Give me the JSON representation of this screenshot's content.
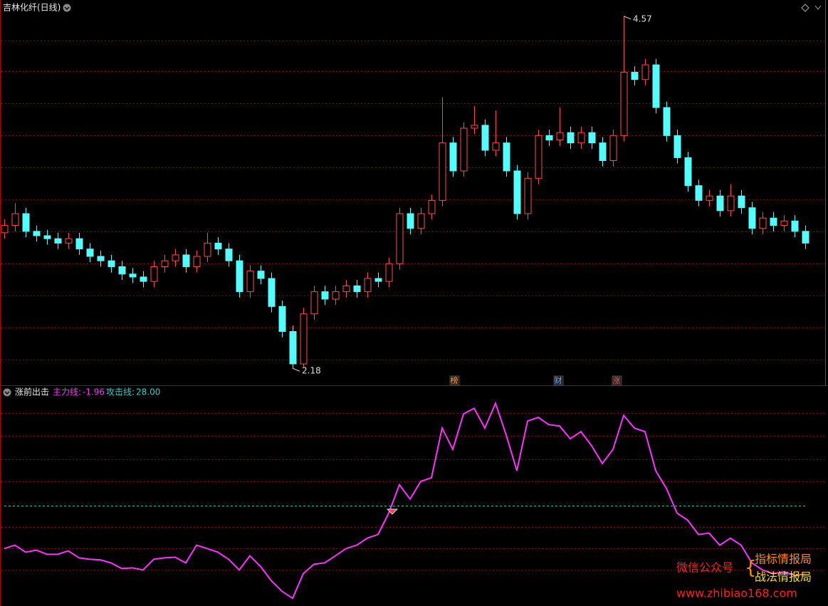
{
  "header": {
    "title": "吉林化纤(日线)"
  },
  "chart_data": [
    {
      "type": "candlestick",
      "open": [
        3.1,
        3.15,
        3.23,
        3.11,
        3.08,
        3.06,
        3.03,
        3.06,
        2.99,
        2.94,
        2.91,
        2.87,
        2.82,
        2.8,
        2.77,
        2.87,
        2.91,
        2.95,
        2.87,
        2.94,
        3.03,
        2.99,
        2.91,
        2.7,
        2.84,
        2.79,
        2.6,
        2.43,
        2.21,
        2.55,
        2.7,
        2.65,
        2.7,
        2.74,
        2.7,
        2.79,
        2.77,
        2.89,
        3.23,
        3.13,
        3.23,
        3.32,
        3.71,
        3.52,
        3.81,
        3.83,
        3.66,
        3.71,
        3.52,
        3.23,
        3.47,
        3.76,
        3.73,
        3.78,
        3.71,
        3.78,
        3.71,
        3.59,
        3.76,
        4.19,
        4.14,
        4.24,
        3.95,
        3.76,
        3.61,
        3.42,
        3.32,
        3.35,
        3.25,
        3.35,
        3.27,
        3.13,
        3.2,
        3.15,
        3.18,
        3.11
      ],
      "high": [
        3.19,
        3.3,
        3.27,
        3.15,
        3.12,
        3.1,
        3.1,
        3.1,
        3.03,
        2.98,
        2.95,
        2.91,
        2.86,
        2.84,
        2.91,
        2.95,
        2.99,
        2.99,
        2.98,
        3.1,
        3.07,
        3.03,
        2.95,
        2.88,
        2.88,
        2.83,
        2.64,
        2.47,
        2.59,
        2.74,
        2.74,
        2.74,
        2.78,
        2.78,
        2.83,
        2.83,
        2.93,
        3.27,
        3.27,
        3.27,
        3.36,
        4.02,
        3.75,
        3.85,
        3.96,
        3.87,
        3.93,
        3.75,
        3.56,
        3.51,
        3.8,
        3.8,
        3.95,
        3.82,
        3.82,
        3.82,
        3.75,
        3.8,
        4.57,
        4.23,
        4.28,
        4.28,
        3.99,
        3.8,
        3.65,
        3.46,
        3.39,
        3.39,
        3.43,
        3.39,
        3.31,
        3.24,
        3.24,
        3.22,
        3.22,
        3.15
      ],
      "low": [
        3.06,
        3.11,
        3.07,
        3.04,
        3.02,
        2.99,
        2.99,
        2.95,
        2.9,
        2.87,
        2.83,
        2.78,
        2.76,
        2.73,
        2.73,
        2.83,
        2.87,
        2.83,
        2.83,
        2.9,
        2.95,
        2.87,
        2.66,
        2.66,
        2.75,
        2.56,
        2.39,
        2.18,
        2.19,
        2.51,
        2.61,
        2.61,
        2.66,
        2.66,
        2.66,
        2.73,
        2.73,
        2.85,
        3.09,
        3.09,
        3.19,
        3.28,
        3.48,
        3.48,
        3.77,
        3.62,
        3.62,
        3.48,
        3.19,
        3.19,
        3.43,
        3.69,
        3.69,
        3.67,
        3.67,
        3.67,
        3.55,
        3.55,
        3.72,
        4.1,
        4.1,
        3.91,
        3.72,
        3.57,
        3.38,
        3.28,
        3.28,
        3.21,
        3.21,
        3.23,
        3.09,
        3.09,
        3.11,
        3.11,
        3.07,
        2.99
      ],
      "close": [
        3.15,
        3.23,
        3.11,
        3.08,
        3.06,
        3.03,
        3.06,
        2.99,
        2.94,
        2.91,
        2.87,
        2.82,
        2.8,
        2.77,
        2.87,
        2.91,
        2.95,
        2.87,
        2.94,
        3.03,
        2.99,
        2.91,
        2.7,
        2.84,
        2.79,
        2.6,
        2.43,
        2.21,
        2.55,
        2.7,
        2.65,
        2.7,
        2.74,
        2.7,
        2.79,
        2.77,
        2.89,
        3.23,
        3.13,
        3.23,
        3.32,
        3.71,
        3.52,
        3.81,
        3.83,
        3.66,
        3.71,
        3.52,
        3.23,
        3.47,
        3.76,
        3.73,
        3.78,
        3.71,
        3.78,
        3.71,
        3.59,
        3.76,
        4.19,
        4.14,
        4.24,
        3.95,
        3.76,
        3.61,
        3.42,
        3.32,
        3.35,
        3.25,
        3.35,
        3.27,
        3.13,
        3.2,
        3.15,
        3.18,
        3.11,
        3.03
      ],
      "up_color": "#ff4a4a",
      "down_color": "#54fcfc",
      "ylim": [
        2.07,
        4.68
      ],
      "high_annotation": 4.57,
      "low_annotation": 2.18,
      "event_markers": [
        "榜",
        "财",
        "涨"
      ]
    },
    {
      "type": "line",
      "title": "涨前出击",
      "series": [
        {
          "name": "主力线:",
          "color": "#ff33ff",
          "value_label": "-1.96",
          "values": [
            9.3,
            10.8,
            7.7,
            8.6,
            6.8,
            6.8,
            8.3,
            5.2,
            4.6,
            4.3,
            3.0,
            0.5,
            0.8,
            -0.1,
            4.6,
            5.2,
            5.5,
            3.0,
            10.8,
            9.3,
            7.7,
            4.6,
            -0.1,
            6.1,
            1.4,
            -4.8,
            -9.5,
            -12.6,
            -1.7,
            2.4,
            3.0,
            6.1,
            9.3,
            10.8,
            13.9,
            15.5,
            24.9,
            37.4,
            31.1,
            38.9,
            40.5,
            62.4,
            53.0,
            68.6,
            71.1,
            62.4,
            73.3,
            59.3,
            43.6,
            65.5,
            67.1,
            63.9,
            63.3,
            57.7,
            60.8,
            54.6,
            46.8,
            53.0,
            68.0,
            62.4,
            60.8,
            43.6,
            35.8,
            24.9,
            21.8,
            15.5,
            16.1,
            10.8,
            13.9,
            10.8,
            3.0,
            -0.1,
            -1.7,
            -1.0,
            -2.5,
            -1.96
          ]
        },
        {
          "name": "攻击线:",
          "color": "#33cccc",
          "value_label": "28.00",
          "values": [
            28,
            28,
            28,
            28,
            28,
            28,
            28,
            28,
            28,
            28,
            28,
            28,
            28,
            28,
            28,
            28,
            28,
            28,
            28,
            28,
            28,
            28,
            28,
            28,
            28,
            28,
            28,
            28,
            28,
            28,
            28,
            28,
            28,
            28,
            28,
            28,
            28,
            28,
            28,
            28,
            28,
            28,
            28,
            28,
            28,
            28,
            28,
            28,
            28,
            28,
            28,
            28,
            28,
            28,
            28,
            28,
            28,
            28,
            28,
            28,
            28,
            28,
            28,
            28,
            28,
            28,
            28,
            28,
            28,
            28,
            28,
            28,
            28,
            28,
            28,
            28
          ]
        }
      ],
      "ylim": [
        -16,
        80
      ]
    }
  ],
  "watermark": {
    "left_top": "微信公众号",
    "right_top": "指标情报局",
    "right_bottom": "战法情报局",
    "url": "www.zhibiao168.com"
  }
}
